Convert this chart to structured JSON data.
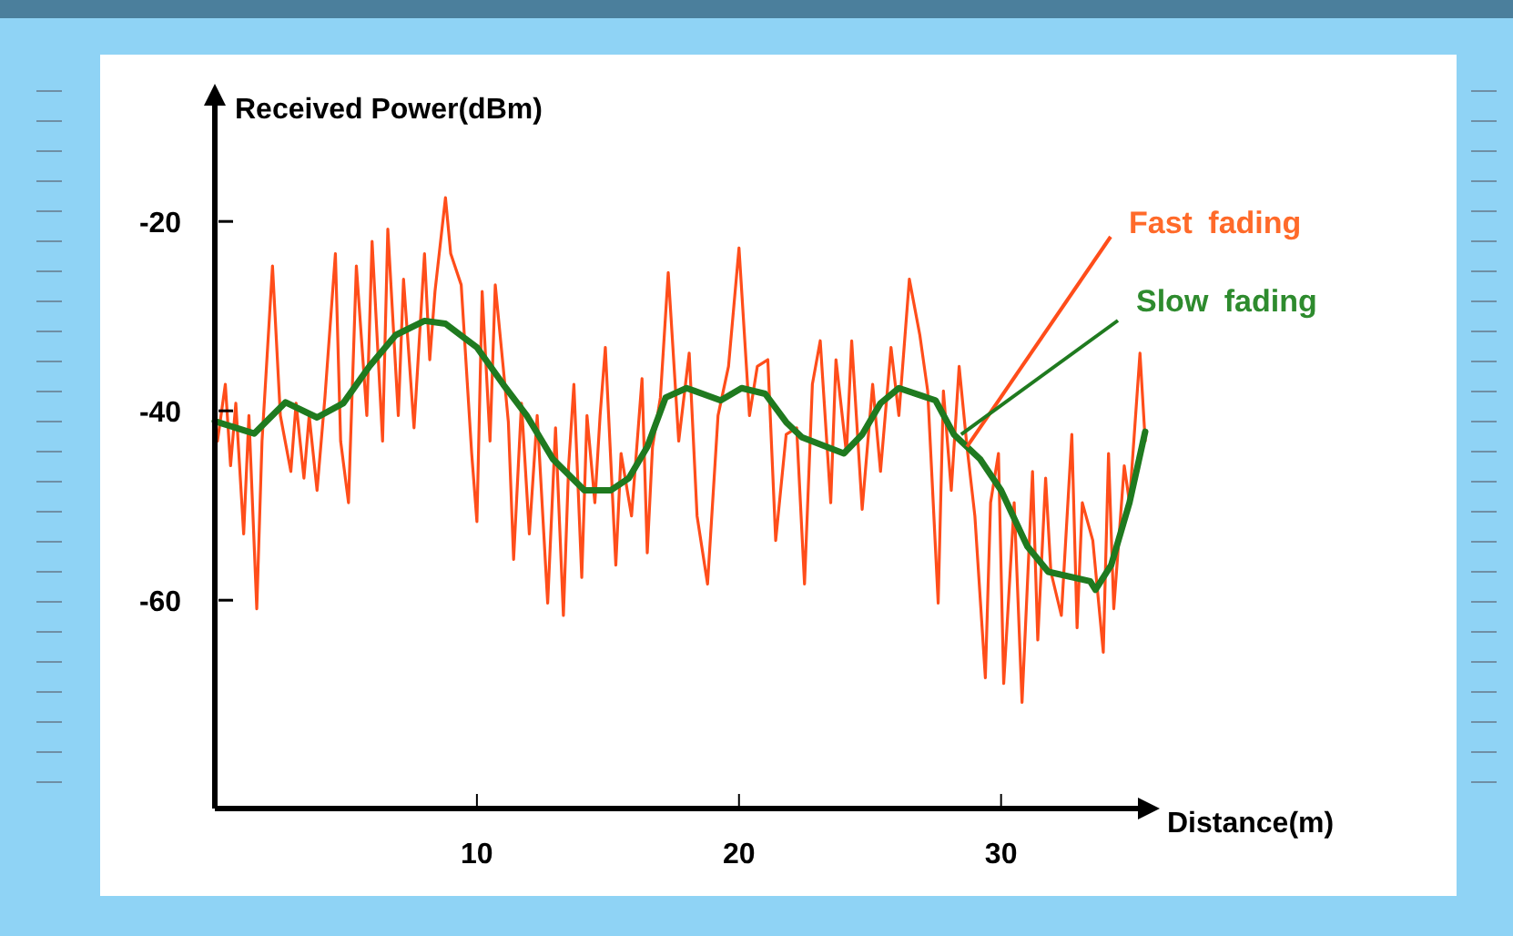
{
  "chart_data": {
    "type": "line",
    "xlabel": "Distance(m)",
    "ylabel": "Received Power(dBm)",
    "xlim": [
      0,
      35.5
    ],
    "ylim": [
      -82,
      -7
    ],
    "xticks": [
      10,
      20,
      30
    ],
    "yticks": [
      -20,
      -40,
      -60
    ],
    "grid": false,
    "legend": false,
    "marker": "none",
    "line_style": "solid",
    "series": [
      {
        "name": "Fast fading",
        "color": "#ff4d1a",
        "x": [
          0.1,
          0.4,
          0.6,
          0.8,
          1.1,
          1.3,
          1.6,
          1.8,
          2.2,
          2.5,
          2.9,
          3.1,
          3.4,
          3.6,
          3.9,
          4.2,
          4.6,
          4.8,
          5.1,
          5.4,
          5.8,
          6.0,
          6.4,
          6.6,
          7.0,
          7.2,
          7.6,
          8.0,
          8.2,
          8.4,
          8.8,
          9.0,
          9.4,
          9.8,
          10.0,
          10.2,
          10.5,
          10.7,
          11.0,
          11.2,
          11.4,
          11.7,
          12.0,
          12.3,
          12.7,
          13.0,
          13.3,
          13.5,
          13.7,
          14.0,
          14.2,
          14.5,
          14.7,
          14.9,
          15.3,
          15.5,
          15.9,
          16.3,
          16.5,
          16.7,
          17.0,
          17.3,
          17.7,
          18.1,
          18.4,
          18.8,
          19.2,
          19.6,
          20.0,
          20.4,
          20.7,
          21.1,
          21.4,
          21.8,
          22.2,
          22.5,
          22.8,
          23.1,
          23.5,
          23.7,
          24.1,
          24.3,
          24.7,
          25.1,
          25.4,
          25.8,
          26.1,
          26.5,
          26.9,
          27.2,
          27.6,
          27.8,
          28.1,
          28.4,
          28.7,
          29.0,
          29.4,
          29.6,
          29.9,
          30.1,
          30.5,
          30.8,
          31.2,
          31.4,
          31.7,
          31.9,
          32.3,
          32.7,
          32.9,
          33.1,
          33.5,
          33.9,
          34.1,
          34.3,
          34.7,
          34.9,
          35.3,
          35.5
        ],
        "values": [
          -43.2,
          -37.2,
          -45.8,
          -39.2,
          -53.0,
          -40.5,
          -60.9,
          -43.2,
          -24.7,
          -40.5,
          -46.4,
          -39.2,
          -47.1,
          -40.5,
          -48.4,
          -38.6,
          -23.4,
          -43.2,
          -49.7,
          -24.7,
          -40.5,
          -22.1,
          -43.2,
          -20.8,
          -40.5,
          -26.1,
          -41.8,
          -23.4,
          -34.6,
          -27.4,
          -17.5,
          -23.4,
          -26.7,
          -44.5,
          -51.7,
          -27.4,
          -43.2,
          -26.7,
          -35.3,
          -41.2,
          -55.7,
          -39.2,
          -53.0,
          -40.5,
          -60.3,
          -41.8,
          -61.6,
          -45.8,
          -37.2,
          -57.6,
          -40.5,
          -49.7,
          -40.5,
          -33.3,
          -56.3,
          -44.5,
          -51.1,
          -36.6,
          -55.0,
          -43.8,
          -38.6,
          -25.4,
          -43.2,
          -33.9,
          -51.1,
          -58.3,
          -40.5,
          -35.3,
          -22.8,
          -40.5,
          -35.3,
          -34.6,
          -53.7,
          -42.5,
          -41.8,
          -58.3,
          -37.2,
          -32.6,
          -49.7,
          -34.6,
          -44.5,
          -32.6,
          -50.4,
          -37.2,
          -46.4,
          -33.3,
          -40.5,
          -26.1,
          -32.0,
          -37.9,
          -60.3,
          -37.9,
          -48.4,
          -35.3,
          -43.8,
          -51.1,
          -68.2,
          -49.7,
          -44.5,
          -68.8,
          -49.7,
          -70.8,
          -46.4,
          -64.2,
          -47.1,
          -57.0,
          -61.6,
          -42.5,
          -62.9,
          -49.7,
          -53.7,
          -65.5,
          -44.5,
          -60.9,
          -45.8,
          -49.7,
          -33.9,
          -43.2
        ]
      },
      {
        "name": "Slow fading",
        "color": "#1f7a1f",
        "x": [
          0,
          1.5,
          2.7,
          3.9,
          4.9,
          5.9,
          6.9,
          8.0,
          8.8,
          10.0,
          11.0,
          11.9,
          12.9,
          14.1,
          15.1,
          15.8,
          16.5,
          17.2,
          18.0,
          19.3,
          20.1,
          21.0,
          21.8,
          22.4,
          24.0,
          24.7,
          25.4,
          26.1,
          27.5,
          28.2,
          29.2,
          30.0,
          31.0,
          31.8,
          33.4,
          33.6,
          34.2,
          34.9,
          35.5
        ],
        "values": [
          -41.1,
          -42.4,
          -39.1,
          -40.7,
          -39.2,
          -35.3,
          -32.0,
          -30.5,
          -30.8,
          -33.3,
          -37.2,
          -40.5,
          -45.1,
          -48.4,
          -48.4,
          -47.1,
          -43.8,
          -38.6,
          -37.6,
          -38.9,
          -37.6,
          -38.2,
          -41.2,
          -42.8,
          -44.5,
          -42.5,
          -39.2,
          -37.6,
          -38.9,
          -42.5,
          -45.1,
          -48.4,
          -54.3,
          -57.0,
          -58.0,
          -58.9,
          -56.3,
          -49.7,
          -42.2
        ]
      }
    ]
  }
}
